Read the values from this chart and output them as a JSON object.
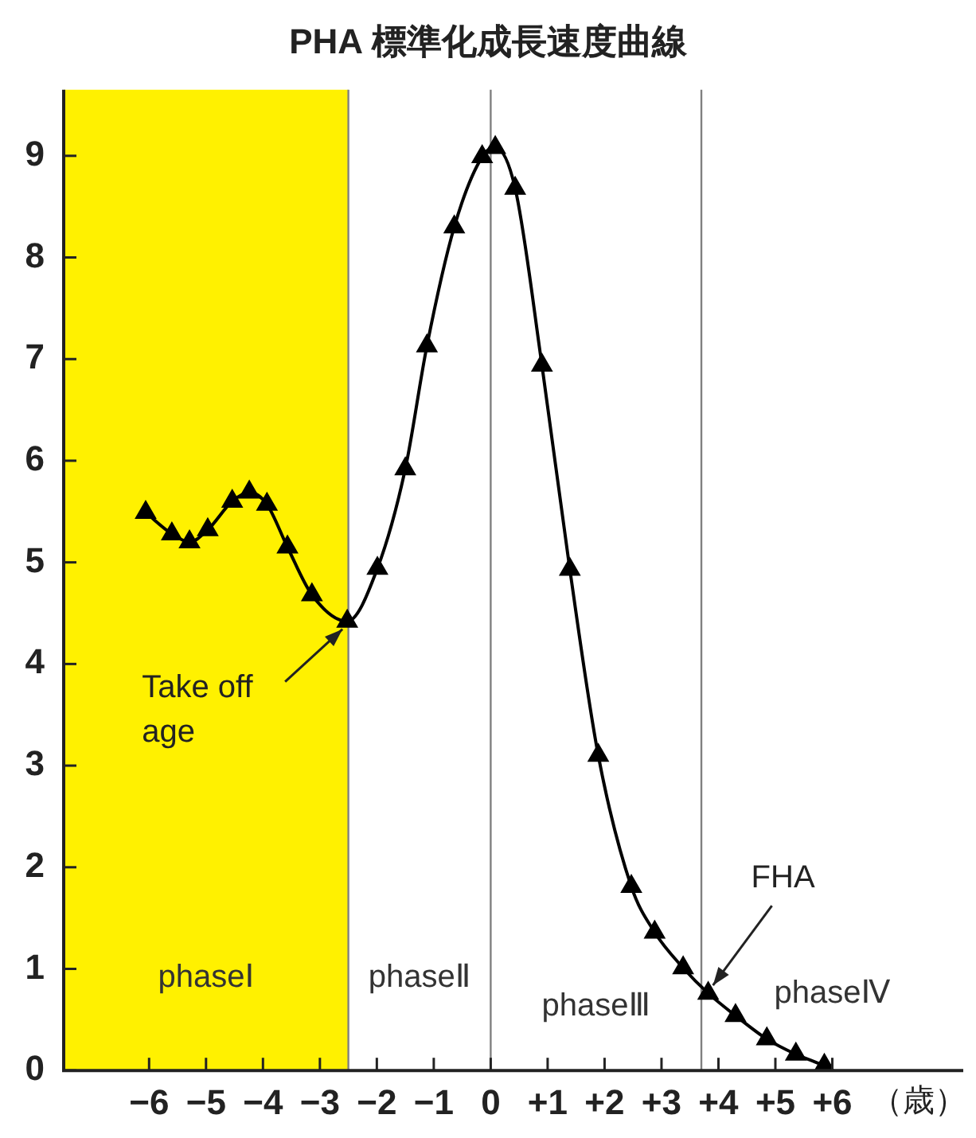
{
  "chart_data": {
    "type": "line",
    "title": "PHA 標準化成長速度曲線",
    "xlabel": "（歳）",
    "x": [
      -6.06,
      -5.6,
      -5.29,
      -4.97,
      -4.54,
      -4.24,
      -3.93,
      -3.57,
      -3.14,
      -2.52,
      -1.99,
      -1.5,
      -1.12,
      -0.64,
      -0.15,
      0.08,
      0.43,
      0.9,
      1.39,
      1.89,
      2.47,
      2.88,
      3.38,
      3.82,
      4.3,
      4.85,
      5.36,
      5.86
    ],
    "series": [
      {
        "color": "#000000",
        "values": [
          5.49,
          5.28,
          5.2,
          5.32,
          5.6,
          5.69,
          5.57,
          5.15,
          4.68,
          4.42,
          4.94,
          5.92,
          7.13,
          8.3,
          8.99,
          9.08,
          8.68,
          6.94,
          4.93,
          3.1,
          1.81,
          1.36,
          1.01,
          0.76,
          0.54,
          0.31,
          0.16,
          0.05
        ]
      }
    ],
    "xlim": [
      -7.5,
      8.3
    ],
    "xticks": [
      {
        "value": -6,
        "label": "−6"
      },
      {
        "value": -5,
        "label": "−5"
      },
      {
        "value": -4,
        "label": "−4"
      },
      {
        "value": -3,
        "label": "−3"
      },
      {
        "value": -2,
        "label": "−2"
      },
      {
        "value": -1,
        "label": "−1"
      },
      0,
      {
        "value": 1,
        "label": "+1"
      },
      {
        "value": 2,
        "label": "+2"
      },
      {
        "value": 3,
        "label": "+3"
      },
      {
        "value": 4,
        "label": "+4"
      },
      {
        "value": 5,
        "label": "+5"
      },
      {
        "value": 6,
        "label": "+6"
      }
    ],
    "ylim": [
      0,
      9.65
    ],
    "yticks": [
      0,
      1,
      2,
      3,
      4,
      5,
      6,
      7,
      8,
      9
    ],
    "bands": [
      {
        "axis": "x",
        "from": -7.5,
        "to": -2.5,
        "label": "phaseⅠ",
        "color": "#fff100"
      }
    ],
    "ref_lines": [
      {
        "axis": "x",
        "value": -2.5,
        "color": "#808080"
      },
      {
        "axis": "x",
        "value": 0,
        "color": "#808080"
      },
      {
        "axis": "x",
        "value": 3.7,
        "color": "#808080"
      }
    ],
    "annotations": [
      "phaseⅡ",
      "phaseⅢ",
      "phaseⅣ",
      {
        "text": "Take off age",
        "x": -2.52,
        "y": 4.42
      },
      {
        "text": "FHA",
        "x": 3.82,
        "y": 0.76
      }
    ],
    "grid": false,
    "legend": false,
    "marker": "triangle",
    "line_style": "solid"
  }
}
